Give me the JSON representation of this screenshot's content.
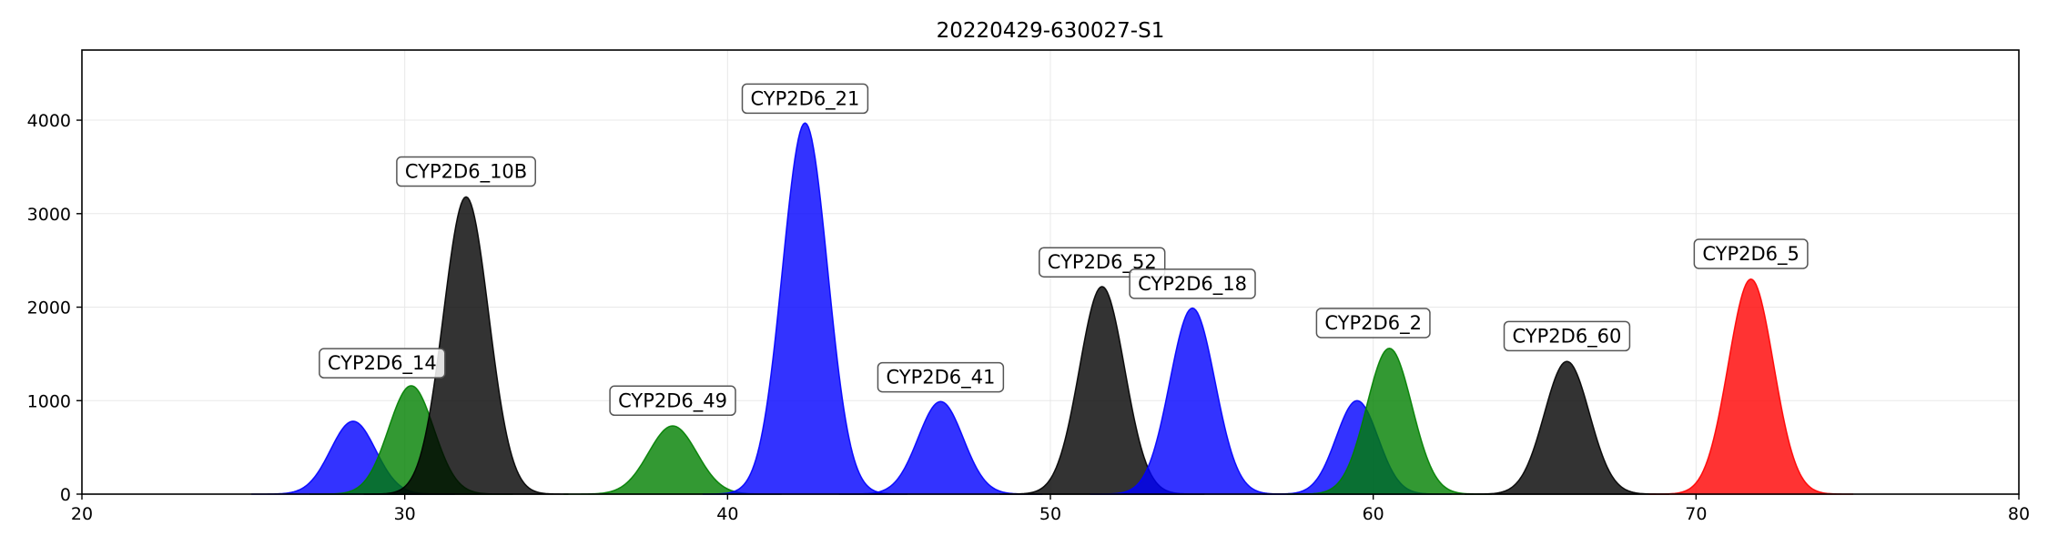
{
  "chart_data": {
    "type": "area",
    "title": "20220429-630027-S1",
    "xlabel": "",
    "ylabel": "",
    "xlim": [
      20,
      80
    ],
    "ylim": [
      0,
      4750
    ],
    "xticks": [
      20,
      30,
      40,
      50,
      60,
      70,
      80
    ],
    "yticks": [
      0,
      1000,
      2000,
      3000,
      4000
    ],
    "grid": true,
    "colors": {
      "blue": "#0000ff",
      "green": "#008000",
      "black": "#000000",
      "red": "#ff0000"
    },
    "peaks": [
      {
        "center": 28.4,
        "height": 780,
        "sigma": 0.7,
        "color": "blue"
      },
      {
        "center": 30.2,
        "height": 1160,
        "sigma": 0.7,
        "color": "green"
      },
      {
        "center": 31.9,
        "height": 3180,
        "sigma": 0.7,
        "color": "black"
      },
      {
        "center": 38.3,
        "height": 730,
        "sigma": 0.75,
        "color": "green"
      },
      {
        "center": 42.4,
        "height": 3970,
        "sigma": 0.7,
        "color": "blue"
      },
      {
        "center": 46.6,
        "height": 990,
        "sigma": 0.7,
        "color": "blue"
      },
      {
        "center": 51.6,
        "height": 2220,
        "sigma": 0.7,
        "color": "black"
      },
      {
        "center": 54.4,
        "height": 1990,
        "sigma": 0.7,
        "color": "blue"
      },
      {
        "center": 59.5,
        "height": 1000,
        "sigma": 0.65,
        "color": "blue"
      },
      {
        "center": 60.5,
        "height": 1560,
        "sigma": 0.7,
        "color": "green"
      },
      {
        "center": 66.0,
        "height": 1420,
        "sigma": 0.7,
        "color": "black"
      },
      {
        "center": 71.7,
        "height": 2300,
        "sigma": 0.7,
        "color": "red"
      }
    ],
    "annotations": [
      {
        "text": "CYP2D6_14",
        "x": 29.3,
        "y": 1400
      },
      {
        "text": "CYP2D6_10B",
        "x": 31.9,
        "y": 3450
      },
      {
        "text": "CYP2D6_49",
        "x": 38.3,
        "y": 1000
      },
      {
        "text": "CYP2D6_21",
        "x": 42.4,
        "y": 4230
      },
      {
        "text": "CYP2D6_41",
        "x": 46.6,
        "y": 1250
      },
      {
        "text": "CYP2D6_52",
        "x": 51.6,
        "y": 2480
      },
      {
        "text": "CYP2D6_18",
        "x": 54.4,
        "y": 2250
      },
      {
        "text": "CYP2D6_2",
        "x": 60.0,
        "y": 1830
      },
      {
        "text": "CYP2D6_60",
        "x": 66.0,
        "y": 1690
      },
      {
        "text": "CYP2D6_5",
        "x": 71.7,
        "y": 2570
      }
    ]
  }
}
